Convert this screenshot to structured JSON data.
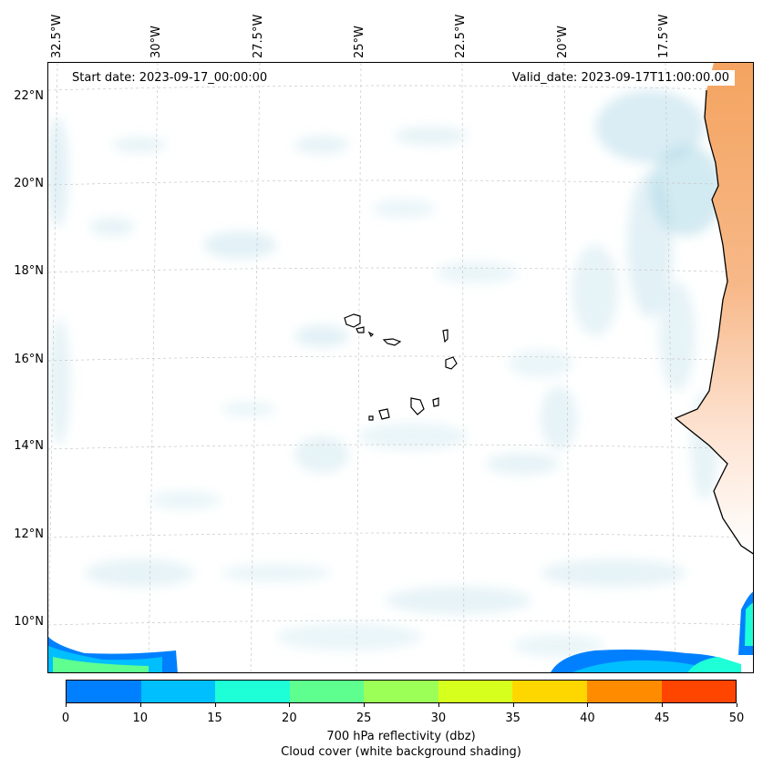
{
  "map": {
    "lon_labels": [
      "32.5°W",
      "30°W",
      "27.5°W",
      "25°W",
      "22.5°W",
      "20°W",
      "17.5°W"
    ],
    "lat_labels": [
      "22°N",
      "20°N",
      "18°N",
      "16°N",
      "14°N",
      "12°N",
      "10°N"
    ],
    "start_date": "Start date: 2023-09-17_00:00:00",
    "valid_date": "Valid_date: 2023-09-17T11:00:00.00",
    "colors": {
      "cloud": "#add8e6",
      "land_warm": "#f4a460",
      "coastline": "#000000"
    }
  },
  "colorbar": {
    "ticks": [
      "0",
      "10",
      "15",
      "20",
      "25",
      "30",
      "35",
      "40",
      "45",
      "50"
    ],
    "colors": [
      "#0080ff",
      "#00bfff",
      "#1effd7",
      "#5fff8f",
      "#9cff57",
      "#d7ff1e",
      "#ffd700",
      "#ff8c00",
      "#ff4500"
    ],
    "label_line1": "700 hPa reflectivity (dbz)",
    "label_line2": "Cloud cover (white background shading)"
  }
}
